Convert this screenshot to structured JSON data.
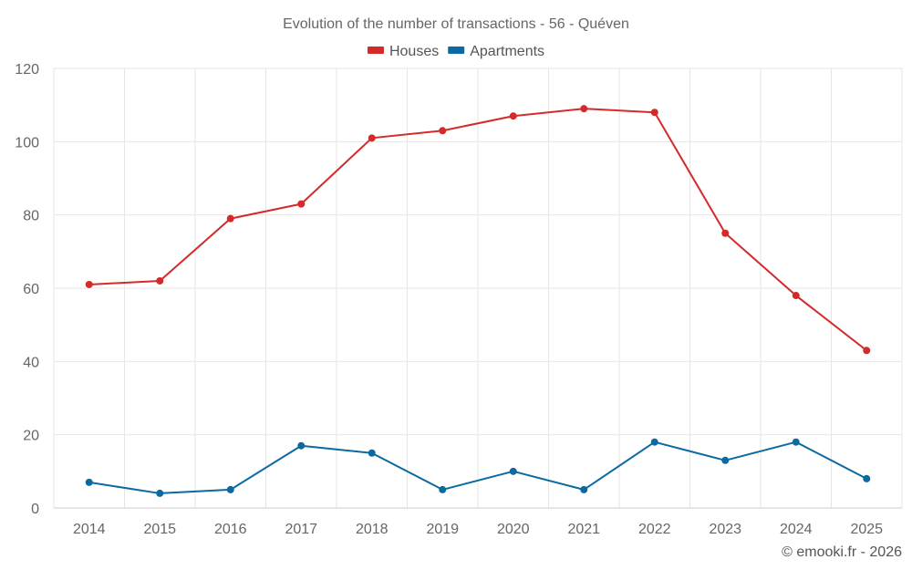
{
  "chart_data": {
    "type": "line",
    "title": "Evolution of the number of transactions - 56 - Quéven",
    "xlabel": "",
    "ylabel": "",
    "categories": [
      "2014",
      "2015",
      "2016",
      "2017",
      "2018",
      "2019",
      "2020",
      "2021",
      "2022",
      "2023",
      "2024",
      "2025"
    ],
    "ylim": [
      0,
      120
    ],
    "yticks": [
      0,
      20,
      40,
      60,
      80,
      100,
      120
    ],
    "grid": true,
    "legend_position": "top-center",
    "series": [
      {
        "name": "Houses",
        "color": "#d32a2a",
        "values": [
          61,
          62,
          79,
          83,
          101,
          103,
          107,
          109,
          108,
          75,
          58,
          43
        ]
      },
      {
        "name": "Apartments",
        "color": "#0b6aa0",
        "values": [
          7,
          4,
          5,
          17,
          15,
          5,
          10,
          5,
          18,
          13,
          18,
          8
        ]
      }
    ]
  },
  "credit": "© emooki.fr - 2026"
}
